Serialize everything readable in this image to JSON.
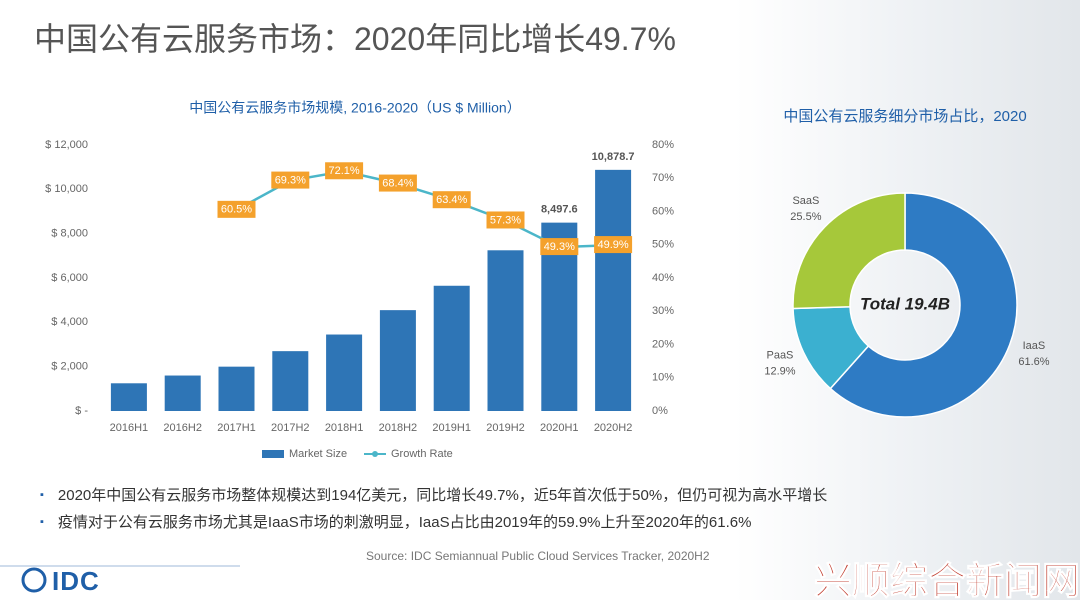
{
  "slide": {
    "title": "中国公有云服务市场：2020年同比增长49.7%",
    "bullets": [
      "2020年中国公有云服务市场整体规模达到194亿美元，同比增长49.7%，近5年首次低于50%，但仍可视为高水平增长",
      "疫情对于公有云服务市场尤其是IaaS市场的刺激明显，IaaS占比由2019年的59.9%上升至2020年的61.6%"
    ],
    "source": "Source: IDC Semiannual Public Cloud Services Tracker, 2020H2",
    "logo": "IDC",
    "watermark": "兴顺综合新闻网"
  },
  "chart_data": [
    {
      "type": "bar",
      "title": "中国公有云服务市场规模, 2016-2020（US $ Million）",
      "categories": [
        "2016H1",
        "2016H2",
        "2017H1",
        "2017H2",
        "2018H1",
        "2018H2",
        "2019H1",
        "2019H2",
        "2020H1",
        "2020H2"
      ],
      "series": [
        {
          "name": "Market Size",
          "type": "bar",
          "color": "#2e75b6",
          "values": [
            1250,
            1600,
            2000,
            2700,
            3450,
            4550,
            5650,
            7250,
            8497.6,
            10878.7
          ],
          "value_labels": [
            null,
            null,
            null,
            null,
            null,
            null,
            null,
            null,
            "8,497.6",
            "10,878.7"
          ]
        },
        {
          "name": "Growth Rate",
          "type": "line",
          "axis": "y2",
          "color": "#4bb6c9",
          "label_color": "#f4a12c",
          "values": [
            null,
            null,
            60.5,
            69.3,
            72.1,
            68.4,
            63.4,
            57.3,
            49.3,
            49.9
          ],
          "value_labels": [
            null,
            null,
            "60.5%",
            "69.3%",
            "72.1%",
            "68.4%",
            "63.4%",
            "57.3%",
            "49.3%",
            "49.9%"
          ]
        }
      ],
      "ylim": [
        0,
        12000
      ],
      "yticks": [
        {
          "value": 0,
          "label": "$ -"
        },
        {
          "value": 2000,
          "label": "$ 2,000"
        },
        {
          "value": 4000,
          "label": "$ 4,000"
        },
        {
          "value": 6000,
          "label": "$ 6,000"
        },
        {
          "value": 8000,
          "label": "$ 8,000"
        },
        {
          "value": 10000,
          "label": "$ 10,000"
        },
        {
          "value": 12000,
          "label": "$ 12,000"
        }
      ],
      "y2lim": [
        0,
        80
      ],
      "y2ticks": [
        {
          "value": 0,
          "label": "0%"
        },
        {
          "value": 10,
          "label": "10%"
        },
        {
          "value": 20,
          "label": "20%"
        },
        {
          "value": 30,
          "label": "30%"
        },
        {
          "value": 40,
          "label": "40%"
        },
        {
          "value": 50,
          "label": "50%"
        },
        {
          "value": 60,
          "label": "60%"
        },
        {
          "value": 70,
          "label": "70%"
        },
        {
          "value": 80,
          "label": "80%"
        }
      ],
      "grid": false,
      "legend": "bottom"
    },
    {
      "type": "pie",
      "title": "中国公有云服务细分市场占比，2020",
      "categories": [
        "IaaS",
        "PaaS",
        "SaaS"
      ],
      "values": [
        61.6,
        12.9,
        25.5
      ],
      "value_labels": [
        "61.6%",
        "12.9%",
        "25.5%"
      ],
      "colors": [
        "#2e7bc4",
        "#3bb0d0",
        "#a6c83a"
      ],
      "center_label": "Total 19.4B",
      "donut": true
    }
  ]
}
